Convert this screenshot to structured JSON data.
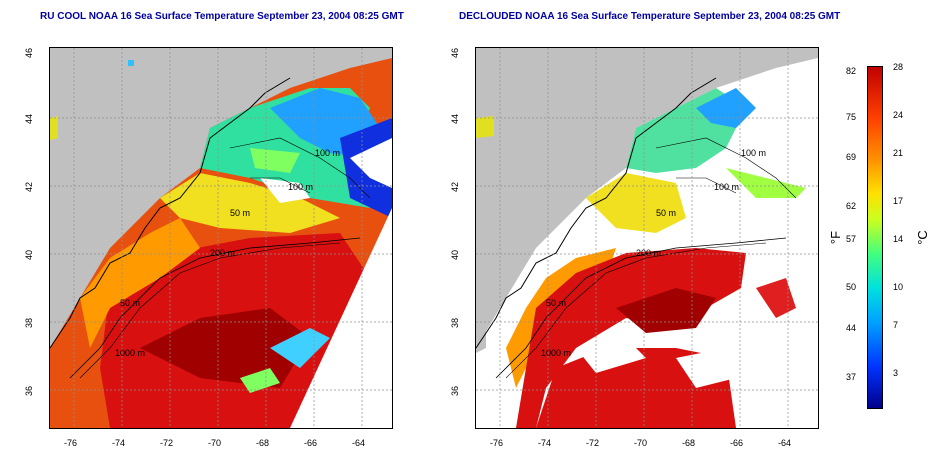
{
  "left_panel": {
    "title": "RU COOL NOAA 16 Sea Surface Temperature September 23, 2004 08:25 GMT",
    "lat_ticks": [
      "46",
      "44",
      "42",
      "40",
      "38",
      "36"
    ],
    "lon_ticks": [
      "-76",
      "-74",
      "-72",
      "-70",
      "-68",
      "-66",
      "-64"
    ],
    "contours": [
      "100 m",
      "100 m",
      "50 m",
      "200 m",
      "50 m",
      "1000 m"
    ]
  },
  "right_panel": {
    "title": "DECLOUDED NOAA 16 Sea Surface Temperature September 23, 2004 08:25 GMT",
    "lat_ticks": [
      "46",
      "44",
      "42",
      "40",
      "38",
      "36"
    ],
    "lon_ticks": [
      "-76",
      "-74",
      "-72",
      "-70",
      "-68",
      "-66",
      "-64"
    ],
    "contours": [
      "100 m",
      "100 m",
      "50 m",
      "200 m",
      "50 m",
      "1000 m"
    ]
  },
  "colorbar": {
    "fahrenheit_label": "°F",
    "celsius_label": "°C",
    "fahrenheit_ticks": [
      "82",
      "75",
      "69",
      "62",
      "57",
      "50",
      "44",
      "37"
    ],
    "celsius_ticks": [
      "28",
      "24",
      "21",
      "17",
      "14",
      "10",
      "7",
      "3"
    ]
  },
  "colors": {
    "land": "#c0c0c0",
    "warm": "#d81010",
    "cool": "#1040ff",
    "title": "#0000a0"
  }
}
